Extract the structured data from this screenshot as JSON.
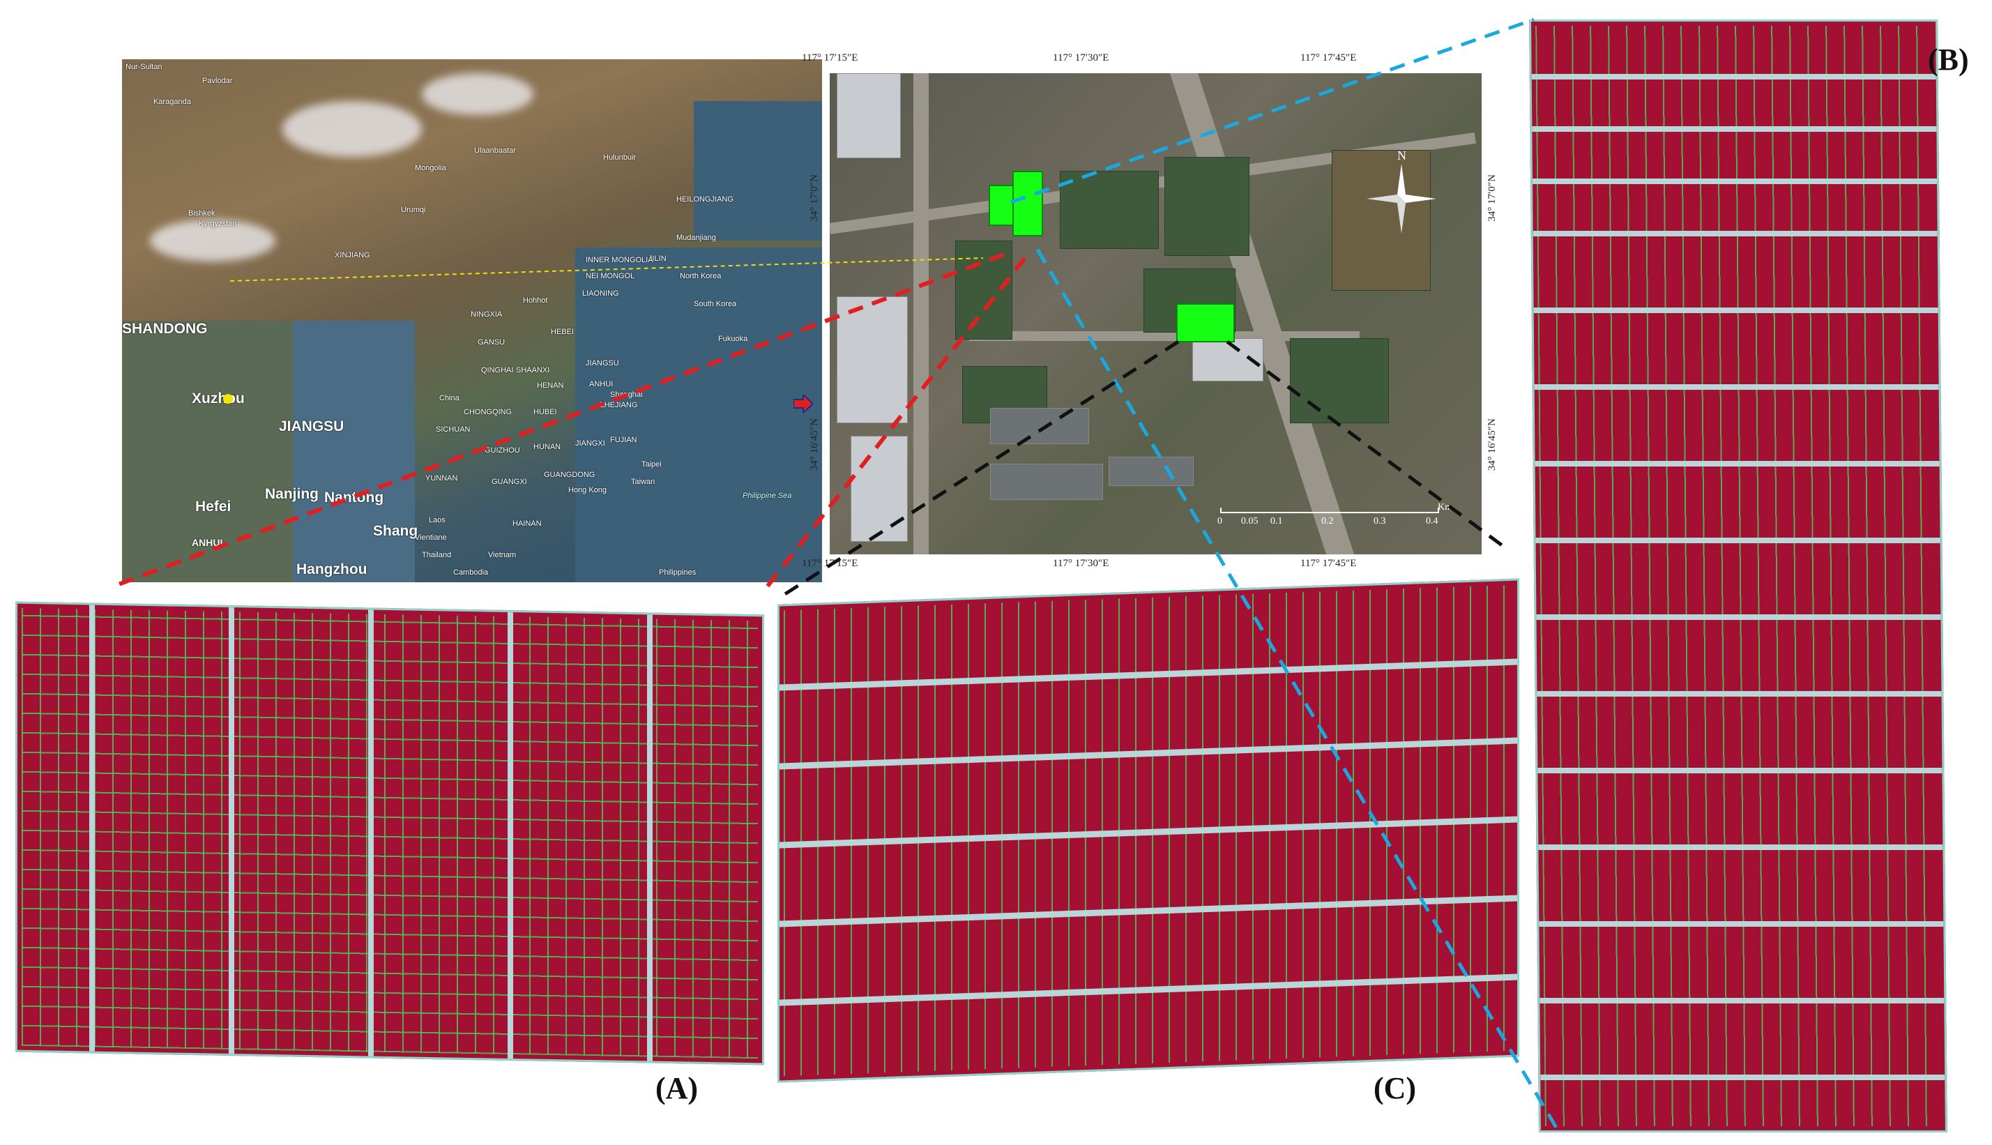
{
  "panels": {
    "a_label": "(A)",
    "b_label": "(B)",
    "c_label": "(C)"
  },
  "map": {
    "regions": {
      "mongolia": "Mongolia",
      "nei_mongol": "NEI MONGOL",
      "inner_mongolia": "INNER MONGOLIA",
      "heilongjiang": "HEILONGJIANG",
      "jilin": "JILIN",
      "liaoning": "LIAONING",
      "hebei": "HEBEI",
      "xinjiang": "XINJIANG",
      "gansu": "GANSU",
      "ningxia": "NINGXIA",
      "shaanxi": "SHAANXI",
      "henan": "HENAN",
      "sichuan": "SICHUAN",
      "chongqing": "CHONGQING",
      "hubei": "HUBEI",
      "anhui": "ANHUI",
      "zhejiang": "ZHEJIANG",
      "hunan": "HUNAN",
      "guizhou": "GUIZHOU",
      "jiangxi": "JIANGXI",
      "fujian": "FUJIAN",
      "yunnan": "YUNNAN",
      "guangxi": "GUANGXI",
      "guangdong": "GUANGDONG",
      "hainan": "HAINAN",
      "china": "China",
      "laos": "Laos",
      "vietnam": "Vietnam",
      "thailand": "Thailand",
      "cambodia": "Cambodia",
      "philippines": "Philippines",
      "philippine_sea": "Philippine Sea",
      "taiwan": "Taiwan",
      "taipei": "Taipei",
      "south_korea": "South Korea",
      "north_korea": "North Korea",
      "shanghai": "Shanghai",
      "hong_kong": "Hong Kong",
      "vientiane": "Vientiane",
      "kyrgyzstan": "Kyrgyzstan",
      "urumqi": "Urumqi",
      "bishkek": "Bishkek",
      "hohhot": "Hohhot",
      "ulaanbaatar": "Ulaanbaatar",
      "mudanjiang": "Mudanjiang",
      "hulunbuir": "Hulunbuir",
      "nur_sultan": "Nur-Sultan",
      "karaganda": "Karaganda",
      "pavlodar": "Pavlodar",
      "fukuoka": "Fukuoka",
      "qinghai": "QINGHAI",
      "jiangsu_upper": "JIANGSU"
    },
    "inset": {
      "shandong": "SHANDONG",
      "xuzhou": "Xuzhou",
      "jiangsu": "JIANGSU",
      "hefei": "Hefei",
      "nanjing": "Nanjing",
      "nantong": "Nantong",
      "anhui": "ANHUI",
      "hangzhou": "Hangzhou",
      "shang": "Shang"
    }
  },
  "satellite": {
    "top_ticks": [
      "117° 17′15″E",
      "117° 17′30″E",
      "117° 17′45″E"
    ],
    "bottom_ticks": [
      "117° 17′15″E",
      "117° 17′30″E",
      "117° 17′45″E"
    ],
    "left_ticks": [
      "34° 17′0″N",
      "34° 16′45″N"
    ],
    "right_ticks": [
      "34° 17′0″N",
      "34° 16′45″N"
    ],
    "scale_values": [
      "0",
      "0.05",
      "0.1",
      "0.2",
      "0.3",
      "0.4"
    ],
    "scale_unit": "Km",
    "north": "N"
  },
  "colors": {
    "plot_red": "#a41033",
    "plot_green": "#3fc45a",
    "highlight": "#14ff14",
    "line_red": "#e02020",
    "line_blue": "#1aa8e0",
    "line_black": "#111111"
  }
}
